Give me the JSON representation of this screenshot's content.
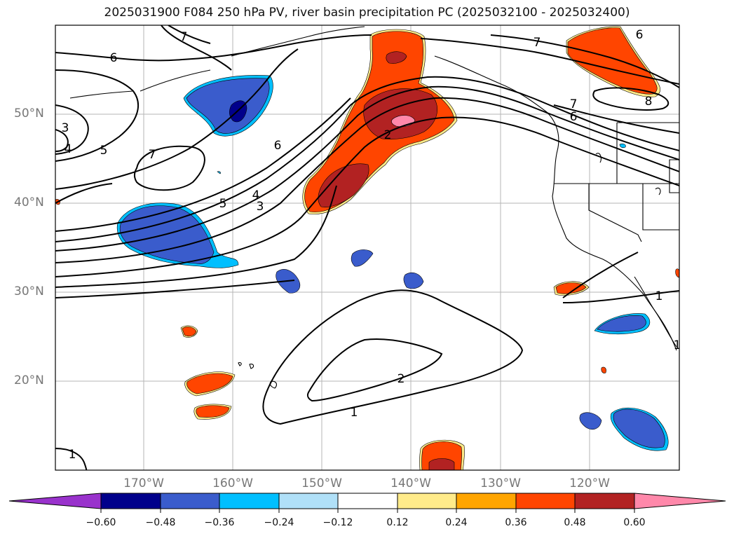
{
  "title": "2025031900 F084 250 hPa PV, river basin precipitation PC (2025032100 - 2025032400)",
  "map": {
    "lon_range": [
      -180,
      -110
    ],
    "lat_range": [
      10,
      60
    ],
    "latitude_labels": [
      "50°N",
      "40°N",
      "30°N",
      "20°N"
    ],
    "longitude_labels": [
      "170°W",
      "160°W",
      "150°W",
      "140°W",
      "130°W",
      "120°W"
    ],
    "contour_labels": [
      "7",
      "6",
      "5",
      "4",
      "3",
      "7",
      "6",
      "5",
      "4",
      "3",
      "2",
      "7",
      "6",
      "8",
      "7",
      "6",
      "1",
      "2",
      "1",
      "1",
      "1"
    ]
  },
  "colorbar": {
    "ticks": [
      "−0.60",
      "−0.48",
      "−0.36",
      "−0.24",
      "−0.12",
      "0.12",
      "0.24",
      "0.36",
      "0.48",
      "0.60"
    ],
    "colors": [
      "#9932cc",
      "#00008b",
      "#3a5ccc",
      "#00bfff",
      "#b0e0f8",
      "#ffffff",
      "#ffeb8a",
      "#ffa500",
      "#ff4500",
      "#b22222",
      "#ff88aa"
    ]
  }
}
